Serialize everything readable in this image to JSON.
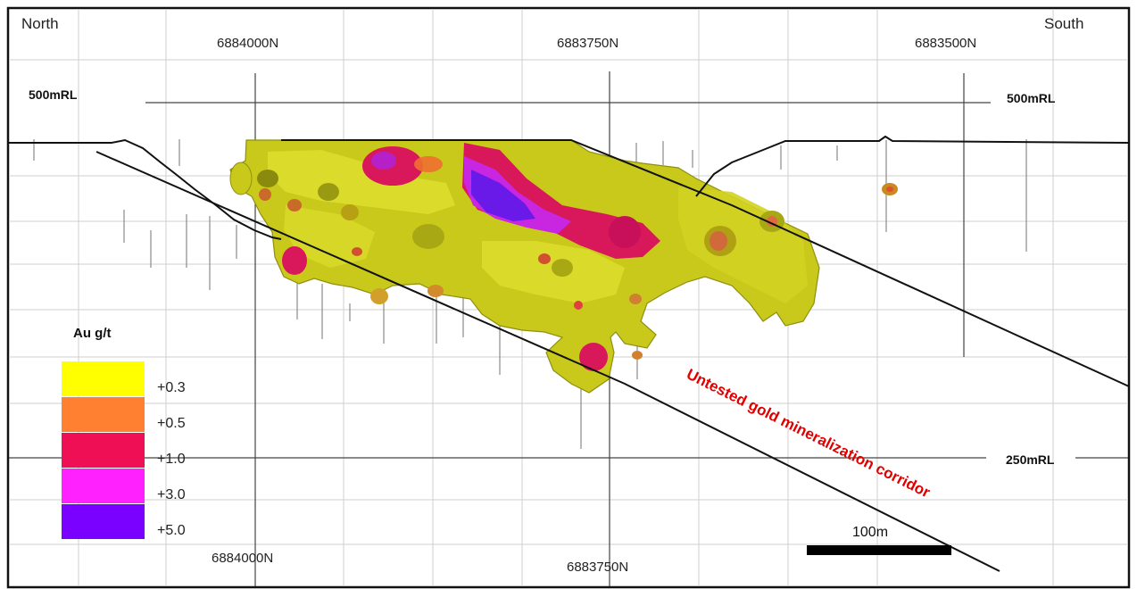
{
  "direction_left": "North",
  "direction_right": "South",
  "northings_top": [
    "6884000N",
    "6883750N",
    "6883500N"
  ],
  "northings_bottom": [
    "6884000N",
    "6883750N"
  ],
  "levels": {
    "upper_left": "500mRL",
    "upper_right": "500mRL",
    "lower_right": "250mRL"
  },
  "legend": {
    "title": "Au g/t",
    "items": [
      {
        "label": "+0.3",
        "color": "#ffff00"
      },
      {
        "label": "+0.5",
        "color": "#ff8030"
      },
      {
        "label": "+1.0",
        "color": "#ee0f55"
      },
      {
        "label": "+3.0",
        "color": "#ff22ff"
      },
      {
        "label": "+5.0",
        "color": "#7a00ff"
      }
    ]
  },
  "annotation": "Untested gold mineralization corridor",
  "annotation_color": "#e00000",
  "scale_bar_label": "100m",
  "colors": {
    "grid": "#c8c8c8",
    "outline": "#111111",
    "body_main": "#c9c91c",
    "body_dark": "#9a9a10",
    "body_highlight": "#ecec40"
  }
}
